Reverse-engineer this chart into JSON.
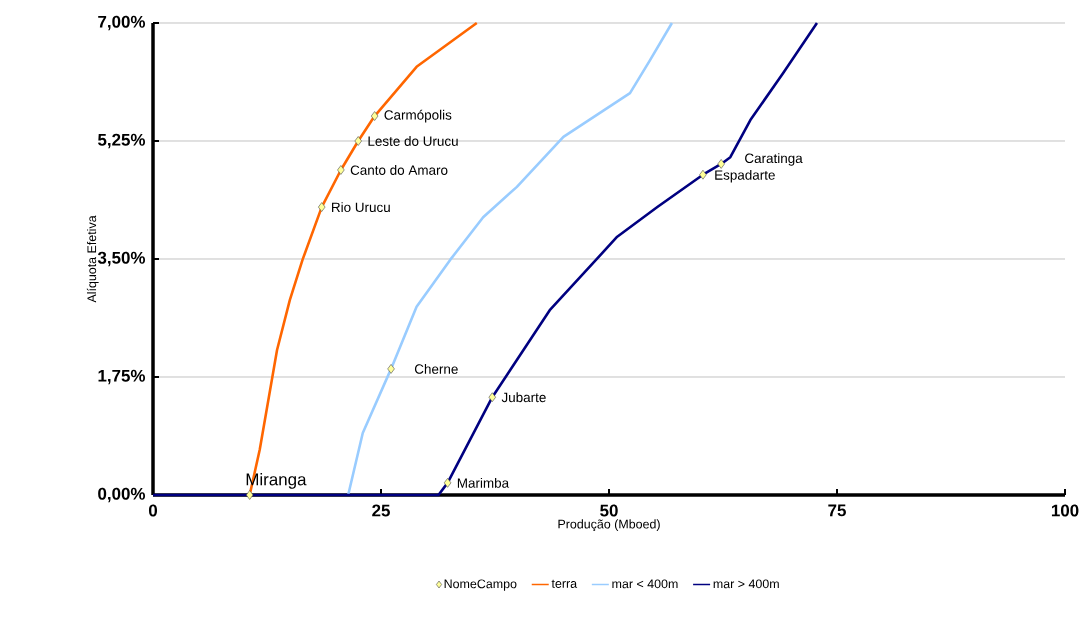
{
  "chart_data": {
    "type": "line",
    "xlabel": "Produção (Mboed)",
    "ylabel": "Alíquota Efetiva",
    "xlim": [
      0,
      100
    ],
    "xticks": [
      0,
      25,
      50,
      75,
      100
    ],
    "ylim": [
      0,
      7
    ],
    "yticks": [
      {
        "value": 0,
        "label": "0,00%"
      },
      {
        "value": 1.75,
        "label": "1,75%"
      },
      {
        "value": 3.5,
        "label": "3,50%"
      },
      {
        "value": 5.25,
        "label": "5,25%"
      },
      {
        "value": 7,
        "label": "7,00%"
      }
    ],
    "grid": "y",
    "legend": "bottom",
    "series": [
      {
        "name": "NomeCampo",
        "type": "scatter",
        "marker": "diamond",
        "color": "#ffff99",
        "x": [
          10.6,
          18.5,
          20.6,
          22.5,
          24.3,
          26.1,
          32.3,
          37.2,
          60.3,
          62.3
        ],
        "values": [
          0,
          4.27,
          4.82,
          5.25,
          5.62,
          1.87,
          0.18,
          1.45,
          4.75,
          4.91
        ]
      },
      {
        "name": "terra",
        "color": "#ff6600",
        "x": [
          10.6,
          11.7,
          13.6,
          15.0,
          16.4,
          18.5,
          20.6,
          22.5,
          24.3,
          28.9,
          35.5
        ],
        "values": [
          0,
          0.67,
          2.15,
          2.89,
          3.49,
          4.27,
          4.82,
          5.25,
          5.62,
          6.35,
          7.0
        ]
      },
      {
        "name": "mar < 400m",
        "color": "#99ccff",
        "x": [
          21.4,
          23.0,
          26.1,
          28.9,
          32.6,
          36.2,
          39.9,
          45.0,
          52.3,
          54.5,
          56.9
        ],
        "values": [
          0,
          0.92,
          1.87,
          2.79,
          3.49,
          4.12,
          4.57,
          5.31,
          5.96,
          6.45,
          7.0
        ]
      },
      {
        "name": "mar > 400m",
        "color": "#000080",
        "x": [
          0,
          31.3,
          32.3,
          37.2,
          43.5,
          50.9,
          55.3,
          60.3,
          62.3,
          63.3,
          65.5,
          69.1,
          72.8
        ],
        "values": [
          0,
          0,
          0.18,
          1.45,
          2.74,
          3.83,
          4.27,
          4.75,
          4.91,
          5.01,
          5.56,
          6.26,
          7.0
        ]
      }
    ],
    "annotations": [
      {
        "text": "Miranga",
        "x": 10.6,
        "y": 0
      },
      {
        "text": "Rio Urucu",
        "x": 18.5,
        "y": 4.27
      },
      {
        "text": "Canto do Amaro",
        "x": 20.6,
        "y": 4.82
      },
      {
        "text": "Leste do Urucu",
        "x": 22.5,
        "y": 5.25
      },
      {
        "text": "Carmópolis",
        "x": 24.3,
        "y": 5.62
      },
      {
        "text": "Cherne",
        "x": 26.1,
        "y": 1.87
      },
      {
        "text": "Marimba",
        "x": 32.3,
        "y": 0.18
      },
      {
        "text": "Jubarte",
        "x": 37.2,
        "y": 1.45
      },
      {
        "text": "Espadarte",
        "x": 60.3,
        "y": 4.75
      },
      {
        "text": "Caratinga",
        "x": 62.3,
        "y": 4.91
      }
    ]
  }
}
